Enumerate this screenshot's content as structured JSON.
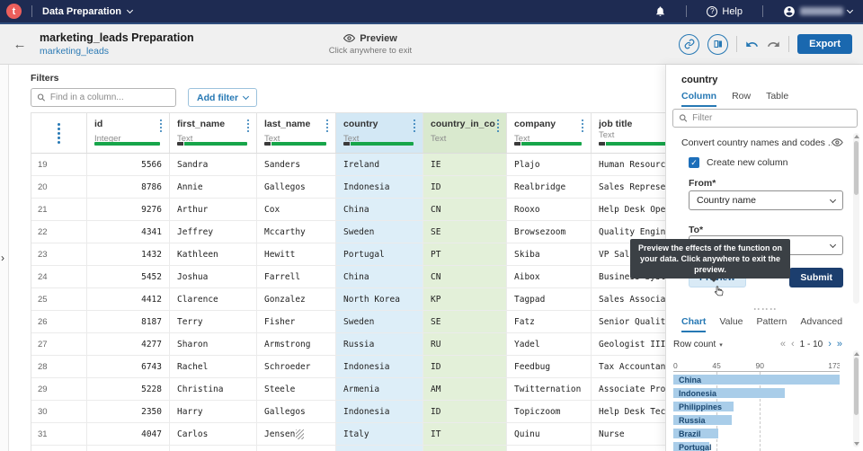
{
  "topbar": {
    "logo_letter": "t",
    "app_menu_label": "Data Preparation",
    "help_label": "Help"
  },
  "header": {
    "title": "marketing_leads Preparation",
    "dataset_link": "marketing_leads",
    "preview_label": "Preview",
    "preview_hint": "Click anywhere to exit",
    "export_label": "Export"
  },
  "filters": {
    "label": "Filters",
    "search_placeholder": "Find in a column...",
    "add_filter_label": "Add filter"
  },
  "table": {
    "columns": [
      {
        "key": "rownum",
        "label": "",
        "type": "",
        "kebab": true,
        "quality": null,
        "tint": null
      },
      {
        "key": "id",
        "label": "id",
        "type": "Integer",
        "kebab": true,
        "quality": "full",
        "tint": null
      },
      {
        "key": "first_name",
        "label": "first_name",
        "type": "Text",
        "kebab": true,
        "quality": "mixed",
        "tint": null
      },
      {
        "key": "last_name",
        "label": "last_name",
        "type": "Text",
        "kebab": true,
        "quality": "mixed",
        "tint": null
      },
      {
        "key": "country",
        "label": "country",
        "type": "Text",
        "kebab": true,
        "quality": "mixed",
        "tint": "blue"
      },
      {
        "key": "country_in_cou",
        "label": "country_in_cou...",
        "type": "Text",
        "kebab": true,
        "quality": "none",
        "tint": "green"
      },
      {
        "key": "company",
        "label": "company",
        "type": "Text",
        "kebab": true,
        "quality": "mixed",
        "tint": null
      },
      {
        "key": "job_title",
        "label": "job title",
        "type": "Text",
        "kebab": false,
        "quality": "mixed",
        "tint": null
      }
    ],
    "rows": [
      [
        19,
        5566,
        "Sandra",
        "Sanders",
        "Ireland",
        "IE",
        "Plajo",
        "Human Resource"
      ],
      [
        20,
        8786,
        "Annie",
        "Gallegos",
        "Indonesia",
        "ID",
        "Realbridge",
        "Sales Represen"
      ],
      [
        21,
        9276,
        "Arthur",
        "Cox",
        "China",
        "CN",
        "Rooxo",
        "Help Desk Oper"
      ],
      [
        22,
        4341,
        "Jeffrey",
        "Mccarthy",
        "Sweden",
        "SE",
        "Browsezoom",
        "Quality Engine"
      ],
      [
        23,
        1432,
        "Kathleen",
        "Hewitt",
        "Portugal",
        "PT",
        "Skiba",
        "VP Sales"
      ],
      [
        24,
        5452,
        "Joshua",
        "Farrell",
        "China",
        "CN",
        "Aibox",
        "Business Syste"
      ],
      [
        25,
        4412,
        "Clarence",
        "Gonzalez",
        "North Korea",
        "KP",
        "Tagpad",
        "Sales Associat"
      ],
      [
        26,
        8187,
        "Terry",
        "Fisher",
        "Sweden",
        "SE",
        "Fatz",
        "Senior Quality"
      ],
      [
        27,
        4277,
        "Sharon",
        "Armstrong",
        "Russia",
        "RU",
        "Yadel",
        "Geologist III"
      ],
      [
        28,
        6743,
        "Rachel",
        "Schroeder",
        "Indonesia",
        "ID",
        "Feedbug",
        "Tax Accountant"
      ],
      [
        29,
        5228,
        "Christina",
        "Steele",
        "Armenia",
        "AM",
        "Twitternation",
        "Associate Prof"
      ],
      [
        30,
        2350,
        "Harry",
        "Gallegos",
        "Indonesia",
        "ID",
        "Topiczoom",
        "Help Desk Tech"
      ],
      [
        31,
        4047,
        "Carlos",
        "Jensen",
        "Italy",
        "IT",
        "Quinu",
        "Nurse"
      ]
    ],
    "trailing_whitespace_row": 31
  },
  "panel": {
    "title": "country",
    "tabs": [
      "Column",
      "Row",
      "Table"
    ],
    "filter_placeholder": "Filter",
    "function_name": "Convert country names and codes ...",
    "create_new_column_label": "Create new column",
    "from_label": "From*",
    "from_value": "Country name",
    "to_label": "To*",
    "to_value": "",
    "tooltip": "Preview the effects of the function on your data. Click anywhere to exit the preview.",
    "preview_label": "Preview",
    "submit_label": "Submit",
    "bottom_tabs": [
      "Chart",
      "Value",
      "Pattern",
      "Advanced"
    ],
    "row_count_label": "Row count",
    "pagination_label": "1 - 10"
  },
  "chart_data": {
    "type": "bar",
    "orientation": "horizontal",
    "title": "Row count",
    "categories": [
      "China",
      "Indonesia",
      "Philippines",
      "Russia",
      "Brazil",
      "Portugal"
    ],
    "values": [
      173,
      116,
      63,
      61,
      47,
      37
    ],
    "xticks": [
      0,
      45,
      90,
      173
    ],
    "xlim": [
      0,
      173
    ],
    "grid": "dashed-vertical",
    "bar_color": "#a9cde9"
  },
  "colors": {
    "topbar_navy": "#1e2b52",
    "logo_coral": "#ec5f5c",
    "accent_blue": "#2678b4",
    "export_blue": "#1a68af",
    "submit_navy": "#1c3e6e",
    "preview_button_bg": "#d9eaf6",
    "quality_green": "#17a54a",
    "tint_blue": "#ddeef8",
    "tint_green": "#e3f0d9",
    "tooltip_bg": "#3b4045",
    "bar_blue": "#a9cde9"
  }
}
